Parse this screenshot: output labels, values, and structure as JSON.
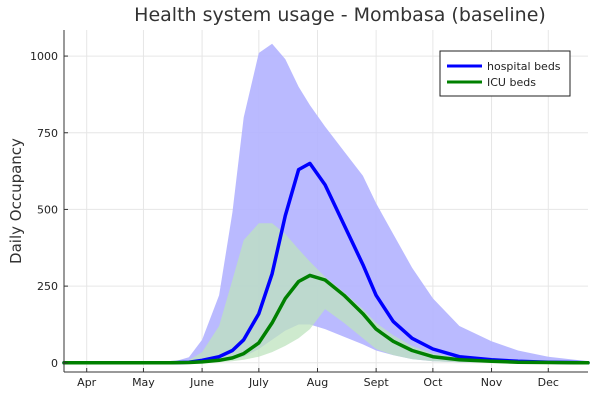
{
  "chart_data": {
    "type": "area",
    "title": "Health system usage - Mombasa (baseline)",
    "xlabel": "",
    "ylabel": "Daily Occupancy",
    "x_tick_labels": [
      "Apr",
      "May",
      "June",
      "July",
      "Aug",
      "Sept",
      "Oct",
      "Nov",
      "Dec"
    ],
    "y_ticks": [
      0,
      250,
      500,
      750,
      1000
    ],
    "ylim": [
      -30,
      1085
    ],
    "grid": true,
    "legend_position": "top-right",
    "x": [
      "Mar 20",
      "May 15",
      "May 25",
      "Jun 1",
      "Jun 10",
      "Jun 17",
      "Jun 23",
      "Jul 1",
      "Jul 8",
      "Jul 15",
      "Jul 22",
      "Jul 28",
      "Aug 5",
      "Aug 15",
      "Aug 25",
      "Sep 1",
      "Sep 10",
      "Sep 20",
      "Oct 1",
      "Oct 15",
      "Nov 1",
      "Nov 15",
      "Dec 1",
      "Dec 15",
      "Dec 22"
    ],
    "series": [
      {
        "name": "hospital beds",
        "color": "#0000ff",
        "band_color": "#b3b3ff",
        "values": [
          0,
          0,
          2,
          8,
          20,
          40,
          75,
          160,
          290,
          480,
          630,
          650,
          580,
          450,
          320,
          220,
          135,
          80,
          45,
          20,
          10,
          5,
          2,
          1,
          0
        ],
        "lower": [
          0,
          0,
          0,
          2,
          5,
          10,
          20,
          45,
          75,
          105,
          125,
          125,
          110,
          85,
          60,
          40,
          25,
          12,
          5,
          2,
          1,
          0,
          0,
          0,
          0
        ],
        "upper": [
          0,
          0,
          18,
          75,
          220,
          490,
          800,
          1010,
          1040,
          990,
          900,
          840,
          770,
          690,
          610,
          520,
          420,
          310,
          210,
          120,
          70,
          40,
          20,
          10,
          5
        ]
      },
      {
        "name": "ICU beds",
        "color": "#008000",
        "band_color": "#bde3bd",
        "values": [
          0,
          0,
          1,
          3,
          8,
          16,
          30,
          65,
          130,
          210,
          265,
          285,
          270,
          220,
          160,
          110,
          70,
          40,
          20,
          10,
          5,
          2,
          1,
          0,
          0
        ],
        "lower": [
          0,
          0,
          0,
          1,
          2,
          5,
          10,
          20,
          35,
          55,
          80,
          110,
          175,
          130,
          80,
          45,
          25,
          12,
          5,
          2,
          1,
          0,
          0,
          0,
          0
        ],
        "upper": [
          0,
          0,
          8,
          35,
          120,
          270,
          400,
          455,
          455,
          420,
          370,
          330,
          280,
          230,
          175,
          130,
          90,
          55,
          30,
          15,
          8,
          4,
          2,
          1,
          0
        ]
      }
    ]
  }
}
